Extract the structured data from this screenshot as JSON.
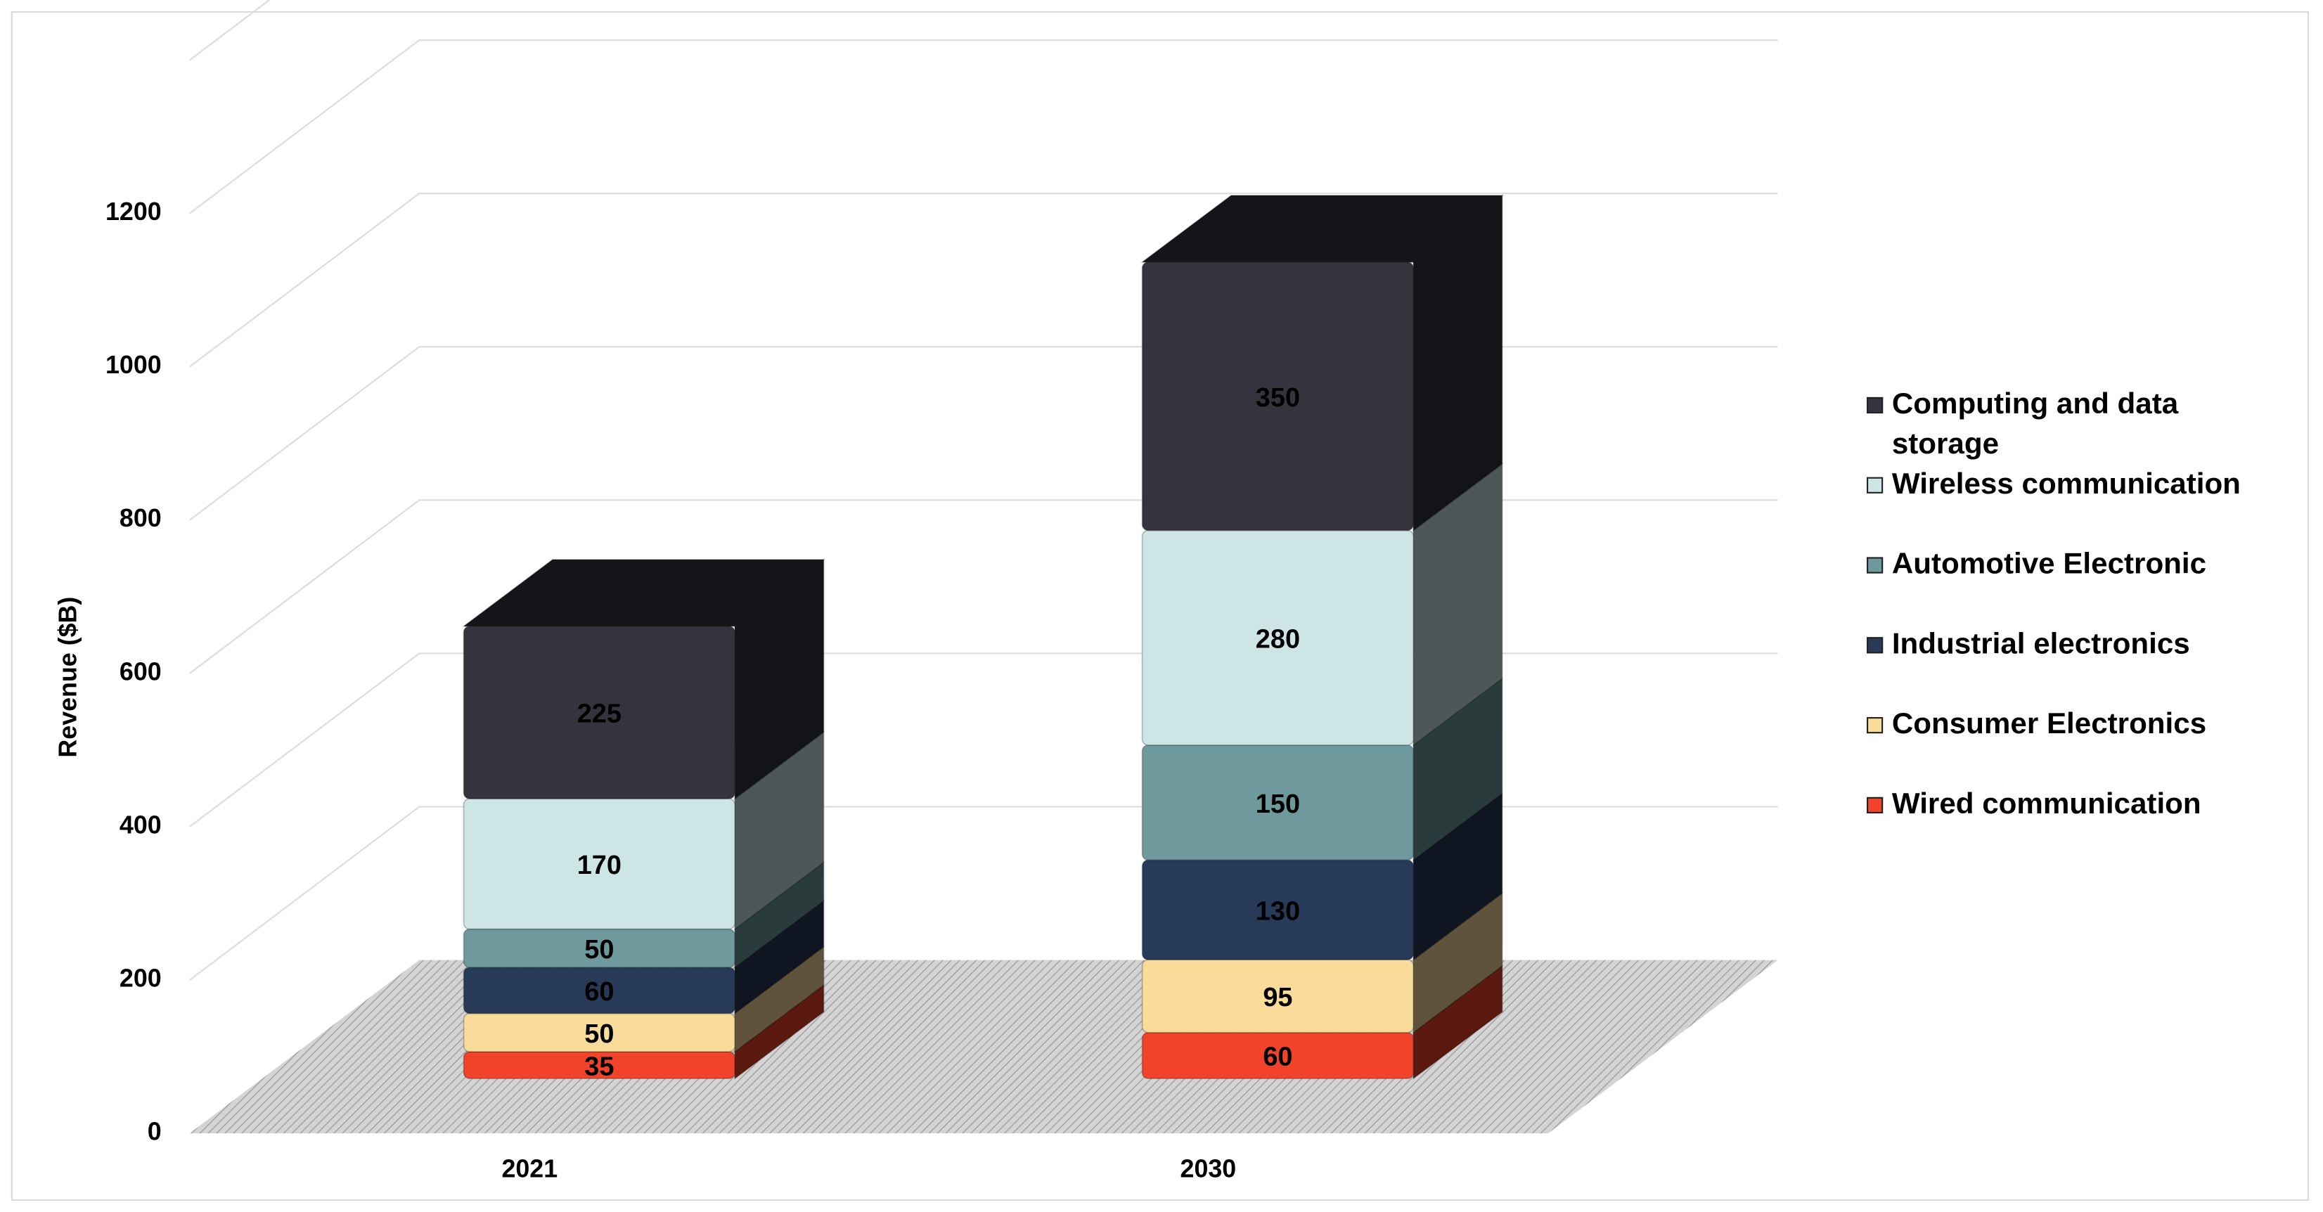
{
  "chart_data": {
    "type": "bar",
    "stacked": true,
    "ylabel": "Revenue ($B)",
    "categories": [
      "2021",
      "2030"
    ],
    "series": [
      {
        "name": "Wired communication",
        "color": "#f0432a",
        "values": [
          35,
          60
        ]
      },
      {
        "name": "Consumer Electronics",
        "color": "#f9dc9a",
        "values": [
          50,
          95
        ]
      },
      {
        "name": "Industrial electronics",
        "color": "#273b58",
        "values": [
          60,
          130
        ]
      },
      {
        "name": "Automotive Electronic",
        "color": "#6e9a9e",
        "values": [
          50,
          150
        ]
      },
      {
        "name": "Wireless communication",
        "color": "#cde5e5",
        "values": [
          170,
          280
        ]
      },
      {
        "name": "Computing and data storage",
        "color": "#33343d",
        "values": [
          225,
          350
        ]
      }
    ],
    "ylim": [
      0,
      1400
    ],
    "yticks": [
      0,
      200,
      400,
      600,
      800,
      1000,
      1200
    ],
    "grid": true,
    "legend": "right"
  }
}
